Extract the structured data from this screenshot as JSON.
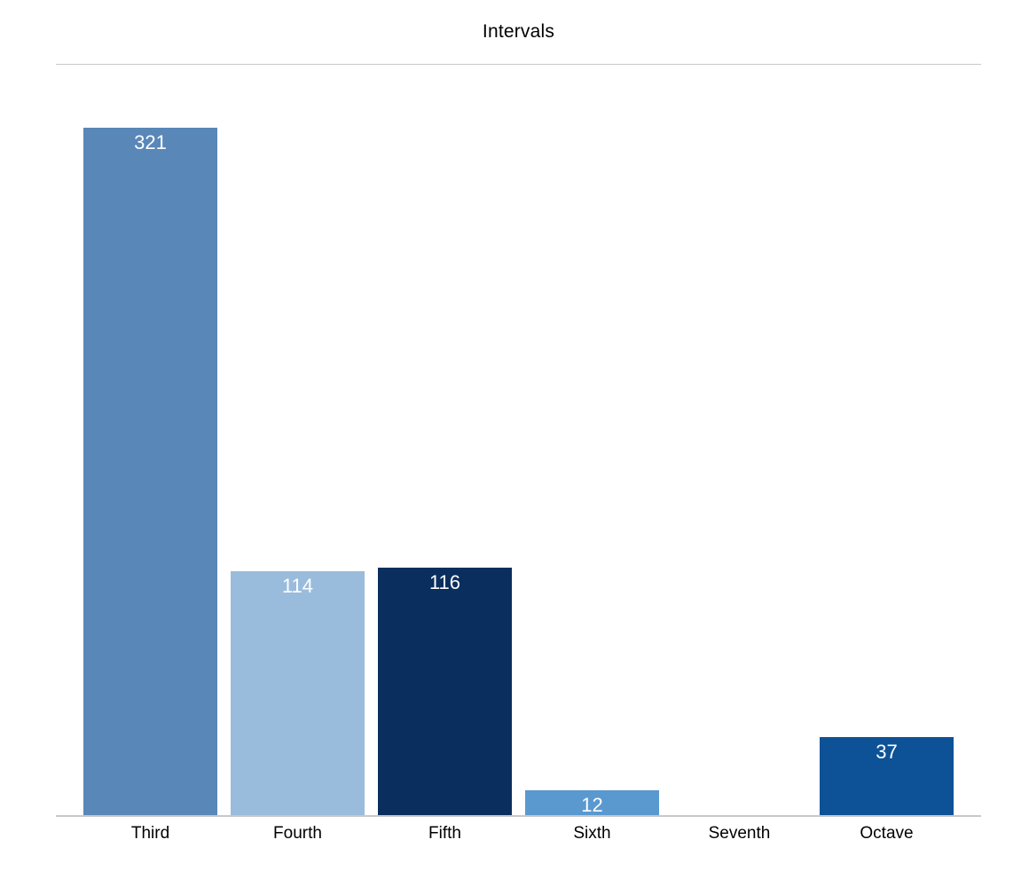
{
  "chart_data": {
    "type": "bar",
    "title": "Intervals",
    "categories": [
      "Third",
      "Fourth",
      "Fifth",
      "Sixth",
      "Seventh",
      "Octave"
    ],
    "values": [
      321,
      114,
      116,
      12,
      0,
      37
    ],
    "bar_colors": [
      "#5987B8",
      "#9ABCDC",
      "#0A2E5E",
      "#5A98D0",
      null,
      "#0D5296"
    ],
    "value_label_color": "#FFFFFF",
    "title_color": "#000000",
    "x_tick_label_color": "#000000",
    "divider_line_color": "#C9C9C9",
    "baseline_color": "#C8C8C8",
    "xlabel": "",
    "ylabel": "",
    "ylim": [
      0,
      321
    ],
    "grid": false,
    "legend": false,
    "value_labels_shown": true,
    "y_axis_ticks_shown": false
  }
}
